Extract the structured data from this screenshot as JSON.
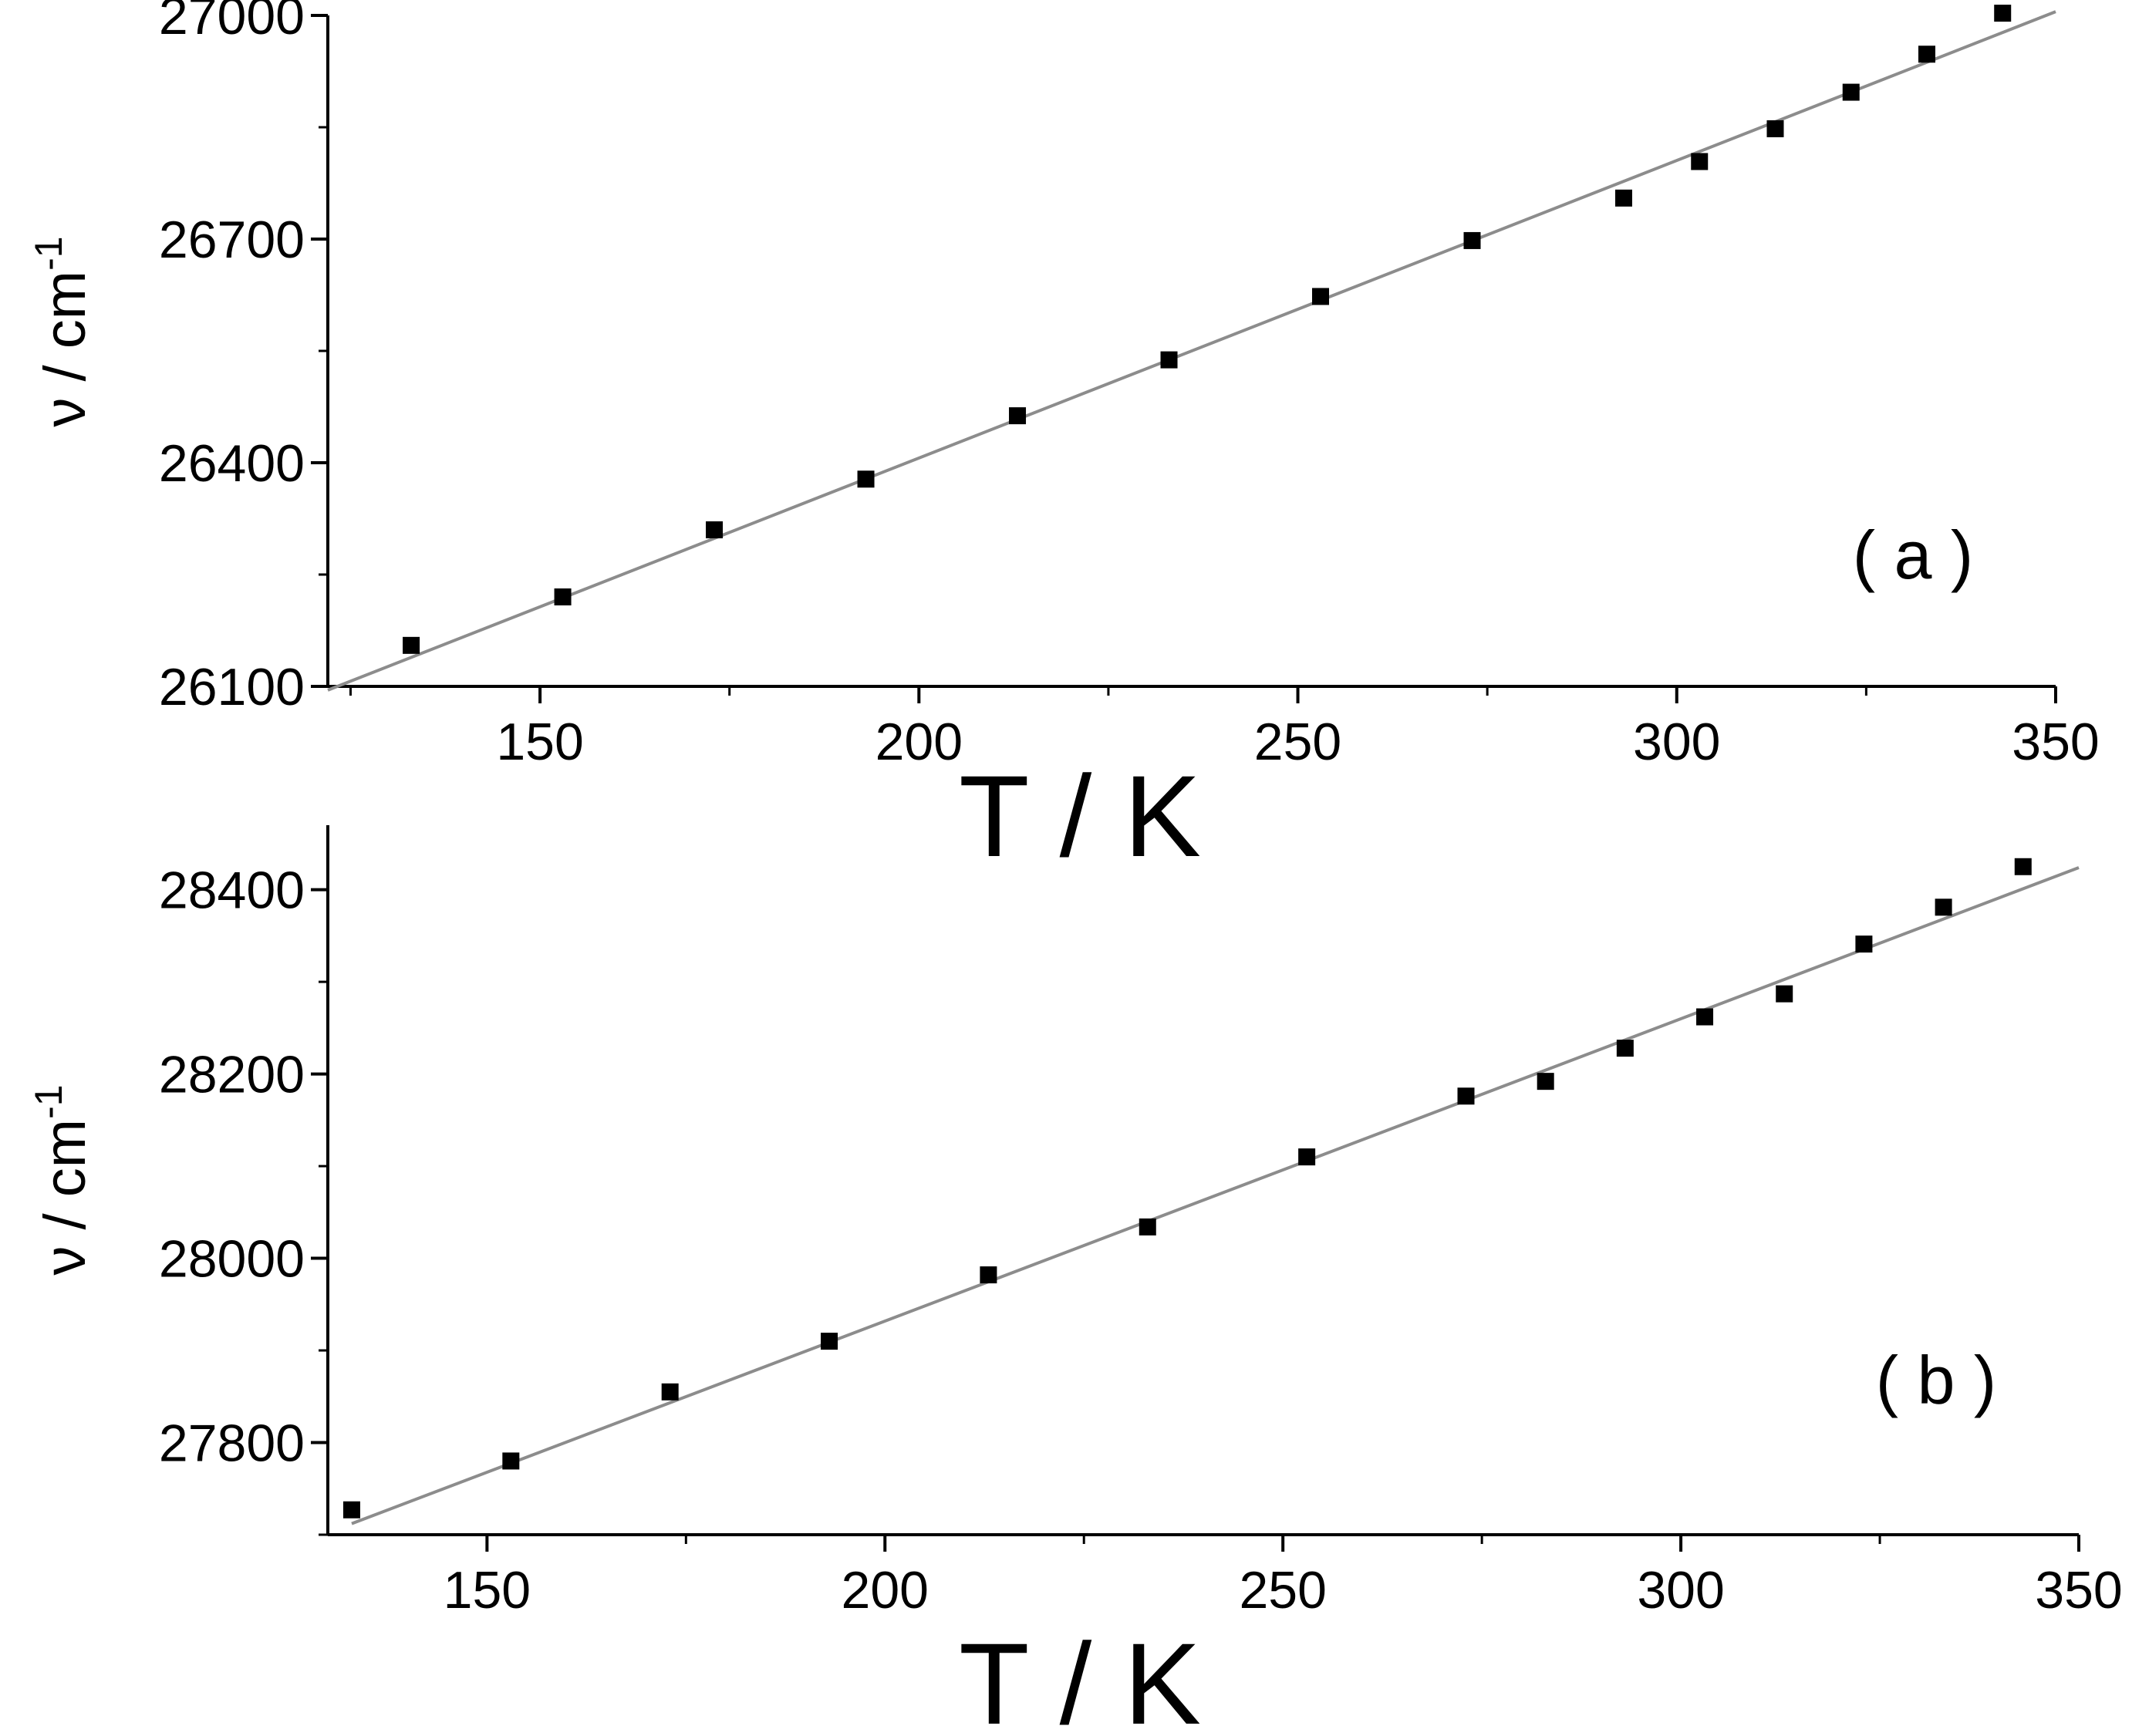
{
  "chart_data": [
    {
      "type": "scatter",
      "panel_label": "( a )",
      "xlabel": "T / K",
      "ylabel_main": "ν / cm",
      "ylabel_sup": "-1",
      "xlim": [
        122,
        350
      ],
      "ylim": [
        26100,
        27000
      ],
      "xticks": [
        150,
        200,
        250,
        300,
        350
      ],
      "yticks": [
        26100,
        26400,
        26700,
        27000
      ],
      "grid": false,
      "series": [
        {
          "x": [
            133,
            153,
            173,
            193,
            213,
            233,
            253,
            273,
            293,
            303,
            313,
            323,
            333,
            343
          ],
          "y": [
            26155,
            26220,
            26310,
            26378,
            26463,
            26538,
            26623,
            26698,
            26755,
            26804,
            26848,
            26897,
            26948,
            27003
          ]
        }
      ],
      "fit_line": {
        "x": [
          122,
          350
        ],
        "y": [
          26095,
          27005
        ]
      },
      "colors": {
        "marker": "#000000",
        "fit": "#8c8c8c",
        "axis": "#000000"
      }
    },
    {
      "type": "scatter",
      "panel_label": "( b )",
      "xlabel": "T / K",
      "ylabel_main": "ν / cm",
      "ylabel_sup": "-1",
      "xlim": [
        130,
        350
      ],
      "ylim": [
        27700,
        28470
      ],
      "xticks": [
        150,
        200,
        250,
        300,
        350
      ],
      "yticks": [
        27800,
        28000,
        28200,
        28400
      ],
      "grid": false,
      "series": [
        {
          "x": [
            133,
            153,
            173,
            193,
            213,
            233,
            253,
            273,
            283,
            293,
            303,
            313,
            323,
            333,
            343
          ],
          "y": [
            27727,
            27780,
            27855,
            27910,
            27982,
            28034,
            28110,
            28176,
            28192,
            28228,
            28262,
            28287,
            28341,
            28381,
            28425
          ]
        }
      ],
      "fit_line": {
        "x": [
          133,
          350
        ],
        "y": [
          27712,
          28424
        ]
      },
      "colors": {
        "marker": "#000000",
        "fit": "#8c8c8c",
        "axis": "#000000"
      }
    }
  ]
}
